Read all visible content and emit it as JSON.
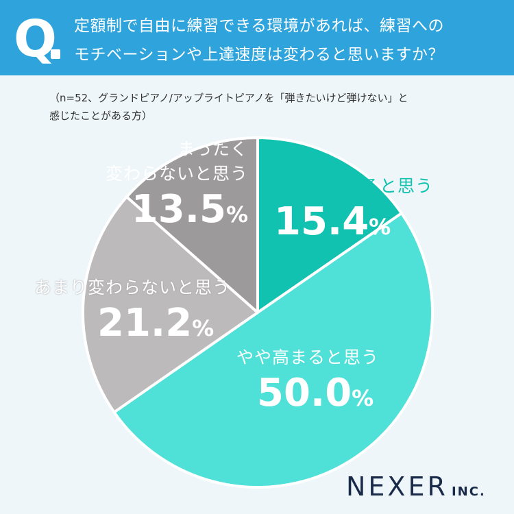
{
  "question": {
    "mark": "Q",
    "line1": "定額制で自由に練習できる環境があれば、練習への",
    "line2": "モチベーションや上達速度は変わると思いますか？"
  },
  "note": {
    "line1": "（n=52、グランドピアノ/アップライトピアノを「弾きたいけど弾けない」と",
    "line2": "感じたことがある方）"
  },
  "chart_data": {
    "type": "pie",
    "categories": [
      "とても高まると思う",
      "やや高まると思う",
      "あまり変わらないと思う",
      "まったく変わらないと思う"
    ],
    "values": [
      15.4,
      50.0,
      21.2,
      13.5
    ],
    "unit": "%",
    "value_labels": [
      "15.4",
      "50.0",
      "21.2",
      "13.5"
    ],
    "colors": [
      "#12c2b0",
      "#4fe0d8",
      "#bcbabb",
      "#9d9a9b"
    ],
    "label_colors": [
      "#ffffff",
      "#ffffff",
      "#ffffff",
      "#ffffff"
    ],
    "category_label_colors": [
      "#12c2b0",
      "#ffffff",
      "#ffffff",
      "#ffffff"
    ],
    "start": "12 o'clock",
    "direction": "clockwise"
  },
  "labels": {
    "s0": {
      "line1": "とても高まると思う"
    },
    "s1": {
      "line1": "やや高まると思う"
    },
    "s2": {
      "line1": "あまり変わらないと思う"
    },
    "s3": {
      "line1": "まったく",
      "line2": "変わらないと思う"
    }
  },
  "logo": {
    "main": "NEXER",
    "suffix": "INC."
  }
}
